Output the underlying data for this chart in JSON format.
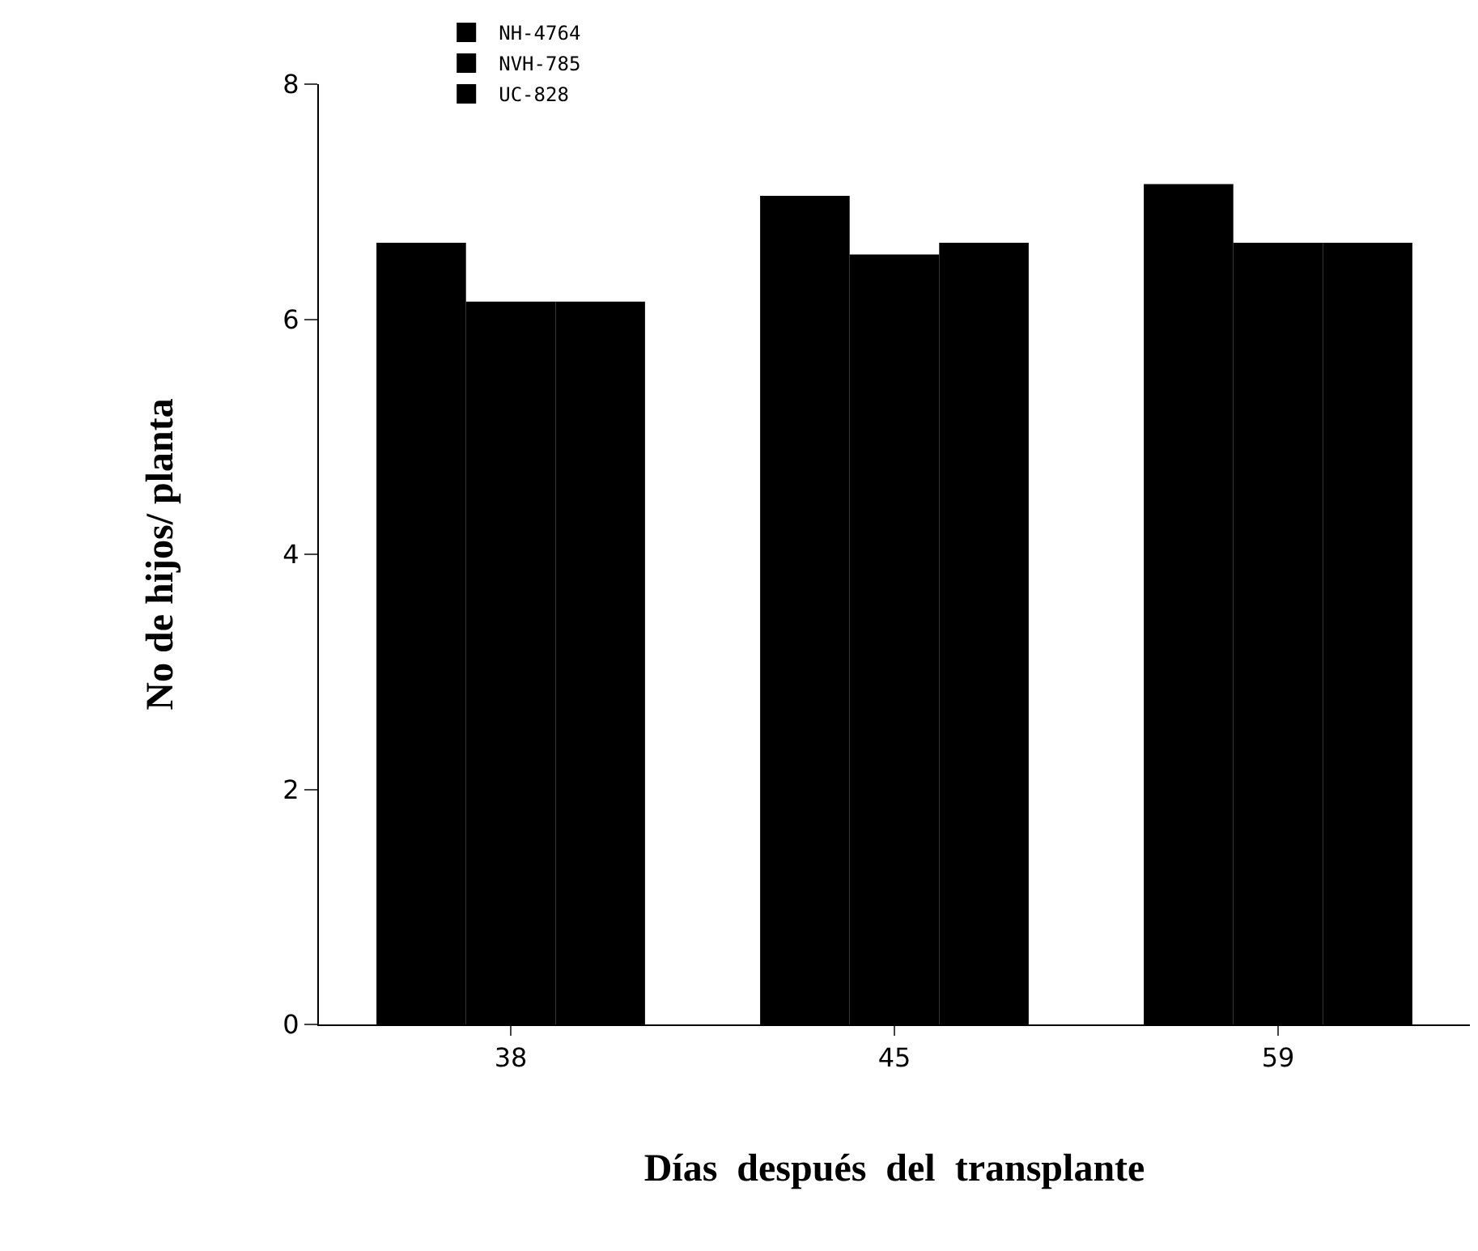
{
  "chart_data": {
    "type": "bar",
    "xlabel": "Días  después  del  transplante",
    "ylabel": "No de hijos/ planta",
    "categories": [
      "38",
      "45",
      "59"
    ],
    "series": [
      {
        "name": "NH-4764",
        "color": "#000000",
        "values": [
          6.65,
          7.05,
          7.15
        ]
      },
      {
        "name": "NVH-785",
        "color": "#000000",
        "values": [
          6.15,
          6.55,
          6.65
        ]
      },
      {
        "name": "UC-828",
        "color": "#000000",
        "values": [
          6.15,
          6.65,
          6.65
        ]
      }
    ],
    "ylim": [
      0,
      8
    ],
    "yticks": [
      0,
      2,
      4,
      6,
      8
    ],
    "legend": "top left"
  }
}
